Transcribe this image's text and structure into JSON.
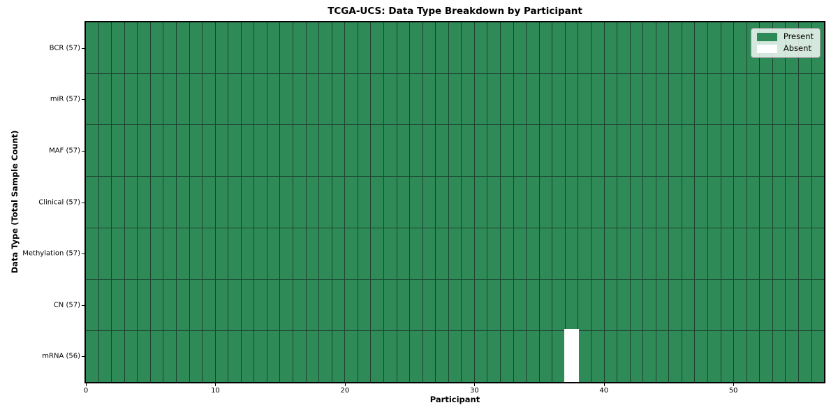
{
  "figure": {
    "title": "TCGA-UCS: Data Type Breakdown by Participant",
    "xlabel": "Participant",
    "ylabel": "Data Type (Total Sample Count)"
  },
  "chart_data": {
    "type": "heatmap",
    "title": "TCGA-UCS: Data Type Breakdown by Participant",
    "xlabel": "Participant",
    "ylabel": "Data Type (Total Sample Count)",
    "n_participants": 57,
    "xlim": [
      0,
      57
    ],
    "x_ticks": [
      0,
      10,
      20,
      30,
      40,
      50
    ],
    "n_rows": 7,
    "rows": [
      {
        "label": "BCR (57)",
        "count": 57,
        "absent_participants": []
      },
      {
        "label": "miR (57)",
        "count": 57,
        "absent_participants": []
      },
      {
        "label": "MAF (57)",
        "count": 57,
        "absent_participants": []
      },
      {
        "label": "Clinical (57)",
        "count": 57,
        "absent_participants": []
      },
      {
        "label": "Methylation (57)",
        "count": 57,
        "absent_participants": []
      },
      {
        "label": "CN (57)",
        "count": 57,
        "absent_participants": []
      },
      {
        "label": "mRNA (56)",
        "count": 56,
        "absent_participants": [
          37
        ]
      }
    ],
    "colors": {
      "present": "#2e8b57",
      "absent": "#ffffff",
      "grid_line": "#1e4130",
      "axis_border": "#000000"
    },
    "legend": {
      "position": "upper right",
      "entries": [
        {
          "label": "Present",
          "color": "#2e8b57"
        },
        {
          "label": "Absent",
          "color": "#ffffff"
        }
      ]
    },
    "grid": true
  }
}
